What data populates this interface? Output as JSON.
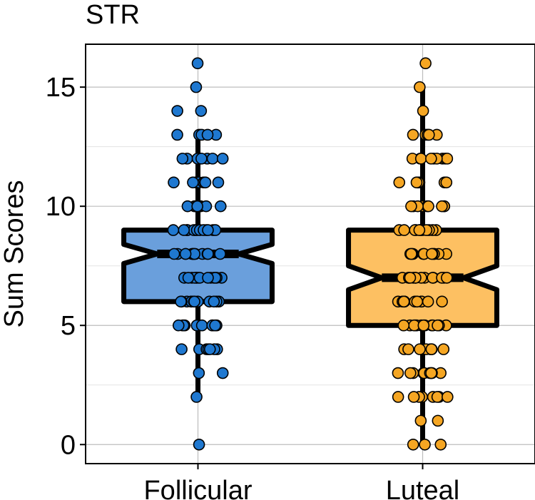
{
  "chart_data": {
    "type": "boxplot",
    "title": "STR",
    "xlabel": "",
    "ylabel": "Sum Scores",
    "ylim": [
      -0.8,
      16.8
    ],
    "yticks": [
      0,
      5,
      10,
      15
    ],
    "grid": true,
    "notched": true,
    "categories": [
      "Follicular",
      "Luteal"
    ],
    "series": [
      {
        "name": "Follicular",
        "color": "#6a9fdc",
        "point_color": "#1f78d0",
        "whisker_low": 2,
        "q1": 6,
        "median": 8,
        "q3": 9,
        "whisker_high": 13,
        "notch_low": 7.6,
        "notch_high": 8.4,
        "outliers": [
          0,
          14,
          14,
          15,
          16
        ],
        "points": [
          0,
          2,
          3,
          3,
          4,
          4,
          4,
          4,
          4,
          4,
          4,
          5,
          5,
          5,
          5,
          5,
          5,
          5,
          5,
          5,
          5,
          6,
          6,
          6,
          6,
          6,
          6,
          6,
          6,
          6,
          6,
          6,
          6,
          7,
          7,
          7,
          7,
          7,
          7,
          7,
          7,
          7,
          7,
          7,
          7,
          7,
          7,
          8,
          8,
          8,
          8,
          8,
          8,
          8,
          8,
          8,
          8,
          8,
          8,
          8,
          8,
          9,
          9,
          9,
          9,
          9,
          9,
          9,
          9,
          9,
          9,
          9,
          9,
          9,
          10,
          10,
          10,
          10,
          10,
          10,
          10,
          10,
          11,
          11,
          11,
          11,
          11,
          11,
          11,
          11,
          12,
          12,
          12,
          12,
          12,
          12,
          12,
          12,
          13,
          13,
          13,
          13,
          13,
          14,
          14,
          15,
          16
        ]
      },
      {
        "name": "Luteal",
        "color": "#fdc062",
        "point_color": "#f5a623",
        "whisker_low": 0,
        "q1": 5,
        "median": 7,
        "q3": 9,
        "whisker_high": 15,
        "notch_low": 6.5,
        "notch_high": 7.5,
        "outliers": [
          16
        ],
        "points": [
          0,
          0,
          0,
          1,
          1,
          2,
          2,
          2,
          2,
          2,
          2,
          2,
          2,
          3,
          3,
          3,
          3,
          3,
          3,
          3,
          3,
          3,
          4,
          4,
          4,
          4,
          4,
          4,
          4,
          4,
          4,
          5,
          5,
          5,
          5,
          5,
          5,
          5,
          5,
          5,
          5,
          5,
          5,
          5,
          6,
          6,
          6,
          6,
          6,
          6,
          6,
          6,
          6,
          6,
          6,
          6,
          6,
          7,
          7,
          7,
          7,
          7,
          7,
          7,
          7,
          7,
          7,
          7,
          7,
          7,
          7,
          8,
          8,
          8,
          8,
          8,
          8,
          8,
          8,
          8,
          8,
          8,
          8,
          8,
          9,
          9,
          9,
          9,
          9,
          9,
          9,
          9,
          9,
          9,
          9,
          9,
          10,
          10,
          10,
          10,
          10,
          10,
          10,
          10,
          10,
          11,
          11,
          11,
          11,
          11,
          11,
          11,
          11,
          12,
          12,
          12,
          12,
          12,
          12,
          12,
          12,
          12,
          13,
          13,
          13,
          13,
          13,
          14,
          15,
          16
        ]
      }
    ]
  }
}
